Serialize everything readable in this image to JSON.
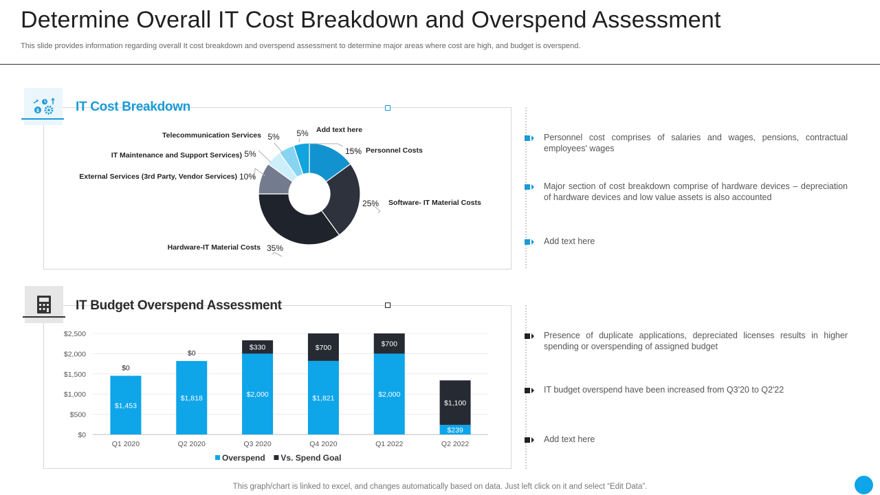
{
  "header": {
    "title": "Determine Overall IT Cost Breakdown and Overspend Assessment",
    "subtitle": "This slide provides information regarding overall It cost breakdown and overspend assessment to determine major areas where cost are high, and budget is overspend."
  },
  "sections": {
    "cost_title": "IT Cost Breakdown",
    "budget_title": "IT Budget Overspend Assessment"
  },
  "colors": {
    "accent": "#1a9ad6",
    "dark": "#262a33",
    "blue_bar": "#0ea5e9"
  },
  "icons": {
    "cost": "it-cost-gears-icon",
    "budget": "calculator-icon"
  },
  "chart_data": [
    {
      "type": "pie",
      "title": "IT Cost Breakdown",
      "donut": true,
      "slices": [
        {
          "label": "Personnel Costs",
          "value": 15,
          "display": "15%",
          "color": "#1293cf"
        },
        {
          "label": "Software- IT Material Costs",
          "value": 25,
          "display": "25%",
          "color": "#2d323c"
        },
        {
          "label": "Hardware-IT Material Costs",
          "value": 35,
          "display": "35%",
          "color": "#1f232b"
        },
        {
          "label": "External Services (3rd Party, Vendor Services)",
          "value": 10,
          "display": "10%",
          "color": "#737c8e"
        },
        {
          "label": "IT Maintenance and Support Services)",
          "value": 5,
          "display": "5%",
          "color": "#cdeefb"
        },
        {
          "label": "Telecommunication Services",
          "value": 5,
          "display": "5%",
          "color": "#86d4f2"
        },
        {
          "label": "Add text here",
          "value": 5,
          "display": "5%",
          "color": "#12a4df"
        }
      ]
    },
    {
      "type": "bar",
      "stacked": true,
      "title": "IT Budget Overspend Assessment",
      "categories": [
        "Q1 2020",
        "Q2 2020",
        "Q3 2020",
        "Q4 2020",
        "Q1 2022",
        "Q2 2022"
      ],
      "series": [
        {
          "name": "Overspend",
          "color": "#0ea5e9",
          "values": [
            1453,
            1818,
            2000,
            1821,
            2000,
            239
          ],
          "labels": [
            "$1,453",
            "$1,818",
            "$2,000",
            "$1,821",
            "$2,000",
            "$239"
          ]
        },
        {
          "name": "Vs. Spend Goal",
          "color": "#262a33",
          "values": [
            0,
            0,
            330,
            700,
            700,
            1100
          ],
          "labels": [
            "$0",
            "$0",
            "$330",
            "$700",
            "$700",
            "$1,100"
          ]
        }
      ],
      "ylim": [
        0,
        2500
      ],
      "yticks": [
        0,
        500,
        1000,
        1500,
        2000,
        2500
      ],
      "ytick_labels": [
        "$0",
        "$500",
        "$1,000",
        "$1,500",
        "$2,000",
        "$2,500"
      ],
      "legend": [
        "Overspend",
        "Vs. Spend Goal"
      ]
    }
  ],
  "bullets_top": [
    "Personnel cost comprises of salaries and wages, pensions, contractual employees' wages",
    "Major section of cost breakdown comprise of hardware devices – depreciation of hardware devices and low value assets is also accounted",
    "Add text here"
  ],
  "bullets_bottom": [
    "Presence of duplicate applications, depreciated licenses results in higher spending or overspending of assigned budget",
    "IT budget overspend have been increased from Q3'20 to Q2'22",
    "Add text here"
  ],
  "footer": {
    "note": "This graph/chart is linked to excel, and changes automatically based on data. Just left click on it and select “Edit Data”."
  }
}
